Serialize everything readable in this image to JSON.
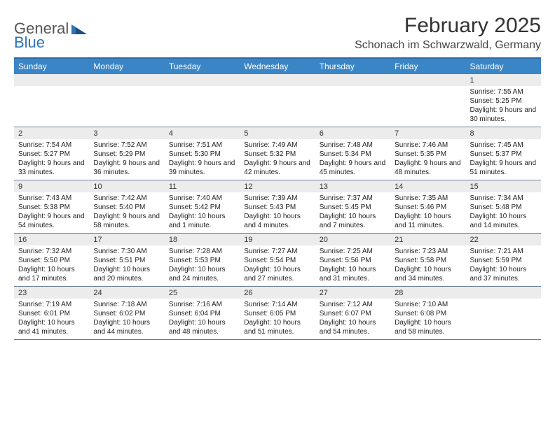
{
  "logo": {
    "word1": "General",
    "word2": "Blue"
  },
  "title": "February 2025",
  "location": "Schonach im Schwarzwald, Germany",
  "header_bg": "#3a85c6",
  "days": [
    "Sunday",
    "Monday",
    "Tuesday",
    "Wednesday",
    "Thursday",
    "Friday",
    "Saturday"
  ],
  "weeks": [
    [
      {
        "n": "",
        "sr": "",
        "ss": "",
        "dl": ""
      },
      {
        "n": "",
        "sr": "",
        "ss": "",
        "dl": ""
      },
      {
        "n": "",
        "sr": "",
        "ss": "",
        "dl": ""
      },
      {
        "n": "",
        "sr": "",
        "ss": "",
        "dl": ""
      },
      {
        "n": "",
        "sr": "",
        "ss": "",
        "dl": ""
      },
      {
        "n": "",
        "sr": "",
        "ss": "",
        "dl": ""
      },
      {
        "n": "1",
        "sr": "Sunrise: 7:55 AM",
        "ss": "Sunset: 5:25 PM",
        "dl": "Daylight: 9 hours and 30 minutes."
      }
    ],
    [
      {
        "n": "2",
        "sr": "Sunrise: 7:54 AM",
        "ss": "Sunset: 5:27 PM",
        "dl": "Daylight: 9 hours and 33 minutes."
      },
      {
        "n": "3",
        "sr": "Sunrise: 7:52 AM",
        "ss": "Sunset: 5:29 PM",
        "dl": "Daylight: 9 hours and 36 minutes."
      },
      {
        "n": "4",
        "sr": "Sunrise: 7:51 AM",
        "ss": "Sunset: 5:30 PM",
        "dl": "Daylight: 9 hours and 39 minutes."
      },
      {
        "n": "5",
        "sr": "Sunrise: 7:49 AM",
        "ss": "Sunset: 5:32 PM",
        "dl": "Daylight: 9 hours and 42 minutes."
      },
      {
        "n": "6",
        "sr": "Sunrise: 7:48 AM",
        "ss": "Sunset: 5:34 PM",
        "dl": "Daylight: 9 hours and 45 minutes."
      },
      {
        "n": "7",
        "sr": "Sunrise: 7:46 AM",
        "ss": "Sunset: 5:35 PM",
        "dl": "Daylight: 9 hours and 48 minutes."
      },
      {
        "n": "8",
        "sr": "Sunrise: 7:45 AM",
        "ss": "Sunset: 5:37 PM",
        "dl": "Daylight: 9 hours and 51 minutes."
      }
    ],
    [
      {
        "n": "9",
        "sr": "Sunrise: 7:43 AM",
        "ss": "Sunset: 5:38 PM",
        "dl": "Daylight: 9 hours and 54 minutes."
      },
      {
        "n": "10",
        "sr": "Sunrise: 7:42 AM",
        "ss": "Sunset: 5:40 PM",
        "dl": "Daylight: 9 hours and 58 minutes."
      },
      {
        "n": "11",
        "sr": "Sunrise: 7:40 AM",
        "ss": "Sunset: 5:42 PM",
        "dl": "Daylight: 10 hours and 1 minute."
      },
      {
        "n": "12",
        "sr": "Sunrise: 7:39 AM",
        "ss": "Sunset: 5:43 PM",
        "dl": "Daylight: 10 hours and 4 minutes."
      },
      {
        "n": "13",
        "sr": "Sunrise: 7:37 AM",
        "ss": "Sunset: 5:45 PM",
        "dl": "Daylight: 10 hours and 7 minutes."
      },
      {
        "n": "14",
        "sr": "Sunrise: 7:35 AM",
        "ss": "Sunset: 5:46 PM",
        "dl": "Daylight: 10 hours and 11 minutes."
      },
      {
        "n": "15",
        "sr": "Sunrise: 7:34 AM",
        "ss": "Sunset: 5:48 PM",
        "dl": "Daylight: 10 hours and 14 minutes."
      }
    ],
    [
      {
        "n": "16",
        "sr": "Sunrise: 7:32 AM",
        "ss": "Sunset: 5:50 PM",
        "dl": "Daylight: 10 hours and 17 minutes."
      },
      {
        "n": "17",
        "sr": "Sunrise: 7:30 AM",
        "ss": "Sunset: 5:51 PM",
        "dl": "Daylight: 10 hours and 20 minutes."
      },
      {
        "n": "18",
        "sr": "Sunrise: 7:28 AM",
        "ss": "Sunset: 5:53 PM",
        "dl": "Daylight: 10 hours and 24 minutes."
      },
      {
        "n": "19",
        "sr": "Sunrise: 7:27 AM",
        "ss": "Sunset: 5:54 PM",
        "dl": "Daylight: 10 hours and 27 minutes."
      },
      {
        "n": "20",
        "sr": "Sunrise: 7:25 AM",
        "ss": "Sunset: 5:56 PM",
        "dl": "Daylight: 10 hours and 31 minutes."
      },
      {
        "n": "21",
        "sr": "Sunrise: 7:23 AM",
        "ss": "Sunset: 5:58 PM",
        "dl": "Daylight: 10 hours and 34 minutes."
      },
      {
        "n": "22",
        "sr": "Sunrise: 7:21 AM",
        "ss": "Sunset: 5:59 PM",
        "dl": "Daylight: 10 hours and 37 minutes."
      }
    ],
    [
      {
        "n": "23",
        "sr": "Sunrise: 7:19 AM",
        "ss": "Sunset: 6:01 PM",
        "dl": "Daylight: 10 hours and 41 minutes."
      },
      {
        "n": "24",
        "sr": "Sunrise: 7:18 AM",
        "ss": "Sunset: 6:02 PM",
        "dl": "Daylight: 10 hours and 44 minutes."
      },
      {
        "n": "25",
        "sr": "Sunrise: 7:16 AM",
        "ss": "Sunset: 6:04 PM",
        "dl": "Daylight: 10 hours and 48 minutes."
      },
      {
        "n": "26",
        "sr": "Sunrise: 7:14 AM",
        "ss": "Sunset: 6:05 PM",
        "dl": "Daylight: 10 hours and 51 minutes."
      },
      {
        "n": "27",
        "sr": "Sunrise: 7:12 AM",
        "ss": "Sunset: 6:07 PM",
        "dl": "Daylight: 10 hours and 54 minutes."
      },
      {
        "n": "28",
        "sr": "Sunrise: 7:10 AM",
        "ss": "Sunset: 6:08 PM",
        "dl": "Daylight: 10 hours and 58 minutes."
      },
      {
        "n": "",
        "sr": "",
        "ss": "",
        "dl": ""
      }
    ]
  ]
}
